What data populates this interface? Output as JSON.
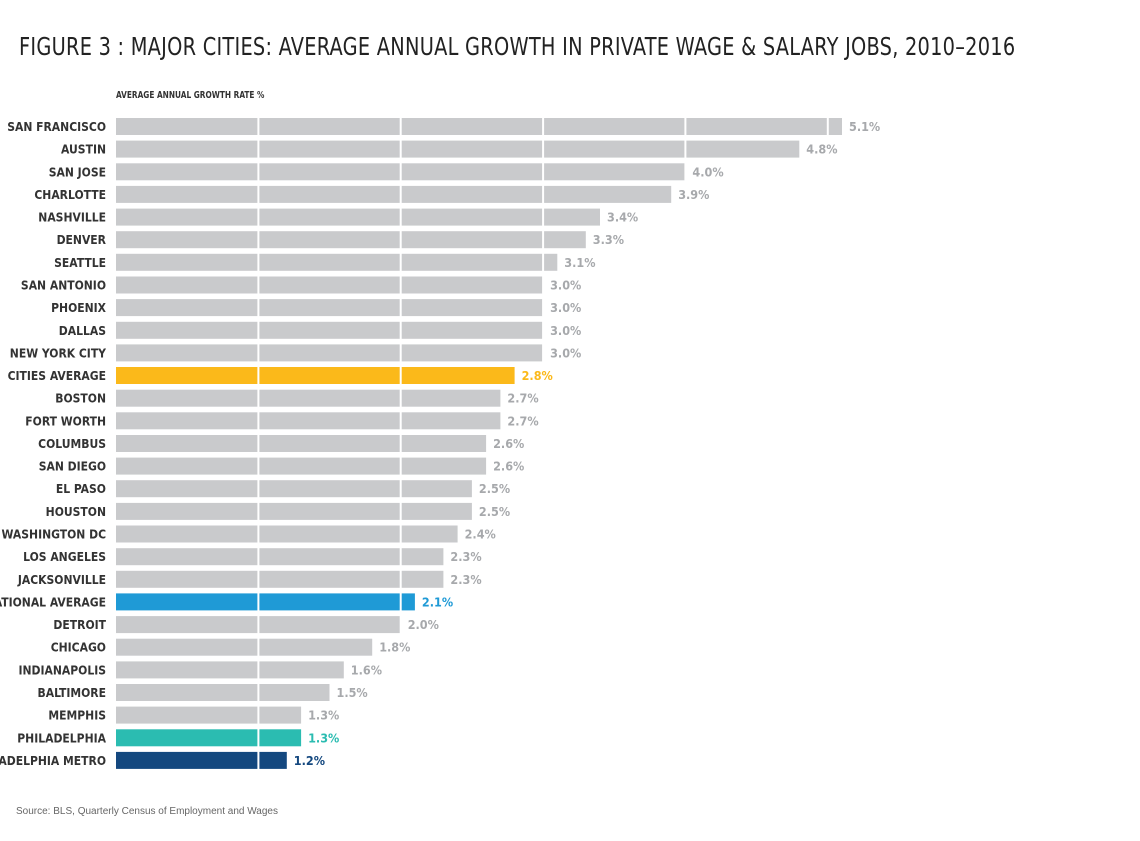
{
  "chart_data": {
    "type": "bar",
    "orientation": "horizontal",
    "title": "FIGURE 3 : MAJOR CITIES: AVERAGE ANNUAL GROWTH IN PRIVATE WAGE & SALARY JOBS, 2010–2016",
    "xlabel": "AVERAGE ANNUAL GROWTH RATE %",
    "source": "Source: BLS, Quarterly Census of Employment and Wages",
    "xlim": [
      0,
      5.1
    ],
    "gridlines_at": [
      1,
      2,
      3,
      4,
      5
    ],
    "default_color": "#c9cacc",
    "categories": [
      {
        "label": "SAN FRANCISCO",
        "value": 5.1,
        "value_label": "5.1%"
      },
      {
        "label": "AUSTIN",
        "value": 4.8,
        "value_label": "4.8%"
      },
      {
        "label": "SAN JOSE",
        "value": 4.0,
        "value_label": "4.0%"
      },
      {
        "label": "CHARLOTTE",
        "value": 3.9,
        "value_label": "3.9%"
      },
      {
        "label": "NASHVILLE",
        "value": 3.4,
        "value_label": "3.4%"
      },
      {
        "label": "DENVER",
        "value": 3.3,
        "value_label": "3.3%"
      },
      {
        "label": "SEATTLE",
        "value": 3.1,
        "value_label": "3.1%"
      },
      {
        "label": "SAN ANTONIO",
        "value": 3.0,
        "value_label": "3.0%"
      },
      {
        "label": "PHOENIX",
        "value": 3.0,
        "value_label": "3.0%"
      },
      {
        "label": "DALLAS",
        "value": 3.0,
        "value_label": "3.0%"
      },
      {
        "label": "NEW YORK CITY",
        "value": 3.0,
        "value_label": "3.0%"
      },
      {
        "label": "CITIES AVERAGE",
        "value": 2.8,
        "value_label": "2.8%",
        "color": "#fbb91a"
      },
      {
        "label": "BOSTON",
        "value": 2.7,
        "value_label": "2.7%"
      },
      {
        "label": "FORT WORTH",
        "value": 2.7,
        "value_label": "2.7%"
      },
      {
        "label": "COLUMBUS",
        "value": 2.6,
        "value_label": "2.6%"
      },
      {
        "label": "SAN DIEGO",
        "value": 2.6,
        "value_label": "2.6%"
      },
      {
        "label": "EL PASO",
        "value": 2.5,
        "value_label": "2.5%"
      },
      {
        "label": "HOUSTON",
        "value": 2.5,
        "value_label": "2.5%"
      },
      {
        "label": "WASHINGTON DC",
        "value": 2.4,
        "value_label": "2.4%"
      },
      {
        "label": "LOS ANGELES",
        "value": 2.3,
        "value_label": "2.3%"
      },
      {
        "label": "JACKSONVILLE",
        "value": 2.3,
        "value_label": "2.3%"
      },
      {
        "label": "NATIONAL AVERAGE",
        "value": 2.1,
        "value_label": "2.1%",
        "color": "#1f9ad6"
      },
      {
        "label": "DETROIT",
        "value": 2.0,
        "value_label": "2.0%"
      },
      {
        "label": "CHICAGO",
        "value": 1.8,
        "value_label": "1.8%"
      },
      {
        "label": "INDIANAPOLIS",
        "value": 1.6,
        "value_label": "1.6%"
      },
      {
        "label": "BALTIMORE",
        "value": 1.5,
        "value_label": "1.5%"
      },
      {
        "label": "MEMPHIS",
        "value": 1.3,
        "value_label": "1.3%"
      },
      {
        "label": "PHILADELPHIA",
        "value": 1.3,
        "value_label": "1.3%",
        "color": "#2bbcb1"
      },
      {
        "label": "PHILADELPHIA METRO",
        "value": 1.2,
        "value_label": "1.2%",
        "color": "#14487f"
      }
    ]
  }
}
